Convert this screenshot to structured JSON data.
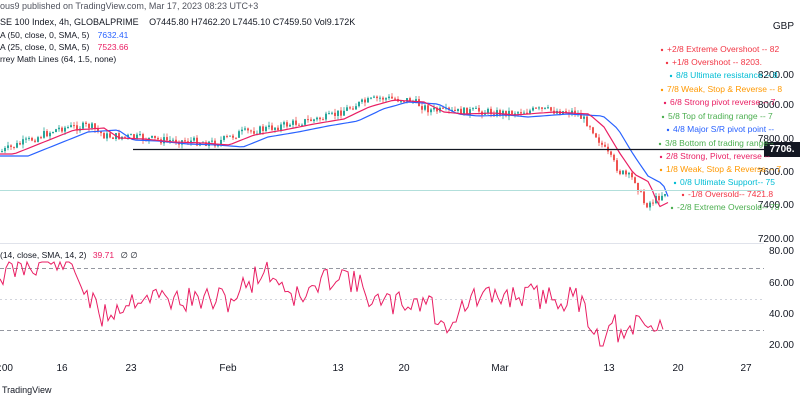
{
  "header": {
    "published": "ous9 published on TradingView.com, Mar 17, 2023 08:23 UTC+3",
    "symbol_line": "SE 100 Index, 4h, GLOBALPRIME",
    "ohlc": "O7445.80  H7462.20  L7445.10  C7459.50  Vol9.172K",
    "indicators": [
      {
        "label": "A (50, close, 0, SMA, 5)",
        "value": "7632.41",
        "color": "#2962ff"
      },
      {
        "label": "A (25, close, 0, SMA, 5)",
        "value": "7523.66",
        "color": "#e91e63"
      },
      {
        "label": "rrey Math Lines (64, 1.5, none)",
        "value": "",
        "color": "#131722"
      }
    ]
  },
  "currency": "GBP",
  "price_axis": [
    "8200.00",
    "8000.00",
    "7800.00",
    "7600.00",
    "7400.00",
    "7200.00"
  ],
  "current_price": "7706.",
  "gann_lines": [
    {
      "text": "+2/8 Extreme Overshoot -- 82",
      "color": "#f23645"
    },
    {
      "text": "+1/8 Overshoot -- 8203.",
      "color": "#f23645"
    },
    {
      "text": "8/8 Ultimate resistance -- 8",
      "color": "#00bcd4"
    },
    {
      "text": "7/8 Weak, Stop & Reverse -- 8",
      "color": "#ff9800"
    },
    {
      "text": "6/8 Strong pivot reverse -- 7",
      "color": "#e91e63"
    },
    {
      "text": "5/8 Top of trading range -- 7",
      "color": "#4caf50"
    },
    {
      "text": "4/8 Major S/R pivot point --",
      "color": "#2962ff"
    },
    {
      "text": "3/8 Bottom of trading range--",
      "color": "#4caf50"
    },
    {
      "text": "2/8 Strong, Pivot, reverse --",
      "color": "#e91e63"
    },
    {
      "text": "1/8 Weak, Stop & Reverse -- 7",
      "color": "#ff9800"
    },
    {
      "text": "0/8 Ultimate Support-- 75",
      "color": "#00bcd4"
    },
    {
      "text": "-1/8 Oversold-- 7421.8",
      "color": "#f23645"
    },
    {
      "text": "-2/8 Extreme Oversold-- 73",
      "color": "#4caf50"
    }
  ],
  "rsi": {
    "label": "(14, close, SMA, 14, 2)",
    "value": "39.71",
    "extra": "∅  ∅",
    "axis": [
      "80.00",
      "60.00",
      "40.00",
      "20.00"
    ]
  },
  "time_axis": [
    ":00",
    "16",
    "23",
    "Feb",
    "13",
    "20",
    "Mar",
    "13",
    "20",
    "27"
  ],
  "footer": "TradingView",
  "colors": {
    "up": "#26a69a",
    "down": "#ef5350",
    "sma50": "#2962ff",
    "sma25": "#e91e63",
    "rsi": "#e91e63"
  }
}
